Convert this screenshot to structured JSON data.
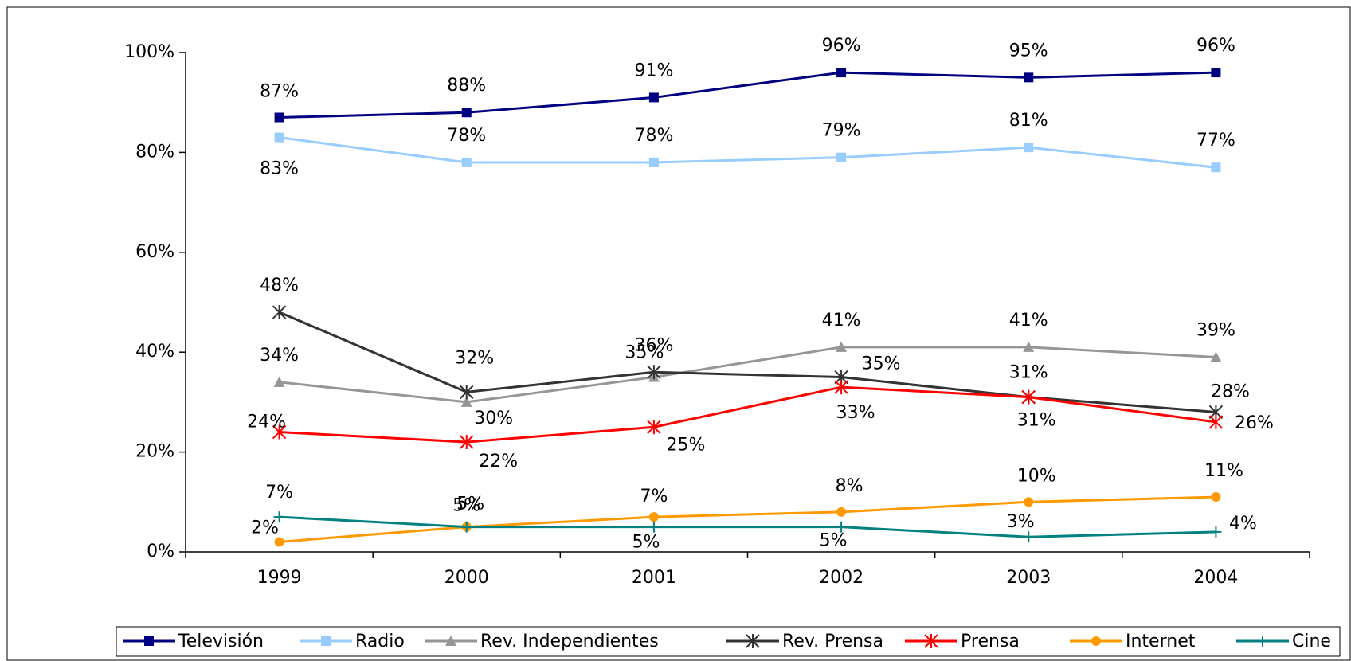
{
  "chart_data": {
    "type": "line",
    "categories": [
      "1999",
      "2000",
      "2001",
      "2002",
      "2003",
      "2004"
    ],
    "ylim": [
      0,
      100
    ],
    "yticks": [
      {
        "value": 0,
        "label": "0%"
      },
      {
        "value": 20,
        "label": "20%"
      },
      {
        "value": 40,
        "label": "40%"
      },
      {
        "value": 60,
        "label": "60%"
      },
      {
        "value": 80,
        "label": "80%"
      },
      {
        "value": 100,
        "label": "100%"
      }
    ],
    "legend": "bottom",
    "series": [
      {
        "name": "Televisión",
        "color": "#000080",
        "marker": "square",
        "values": [
          87,
          88,
          91,
          96,
          95,
          96
        ],
        "value_labels": [
          "87%",
          "88%",
          "91%",
          "96%",
          "95%",
          "96%"
        ]
      },
      {
        "name": "Radio",
        "color": "#99ccff",
        "marker": "square",
        "values": [
          83,
          78,
          78,
          79,
          81,
          77
        ],
        "value_labels": [
          "83%",
          "78%",
          "78%",
          "79%",
          "81%",
          "77%"
        ]
      },
      {
        "name": "Rev. Independientes",
        "color": "#969696",
        "marker": "triangle",
        "values": [
          34,
          30,
          35,
          41,
          41,
          39
        ],
        "value_labels": [
          "34%",
          "30%",
          "35%",
          "41%",
          "41%",
          "39%"
        ]
      },
      {
        "name": "Rev. Prensa",
        "color": "#333333",
        "marker": "asterisk",
        "values": [
          48,
          32,
          36,
          35,
          31,
          28
        ],
        "value_labels": [
          "48%",
          "32%",
          "36%",
          "35%",
          "31%",
          "28%"
        ]
      },
      {
        "name": "Prensa",
        "color": "#ff0000",
        "marker": "asterisk",
        "values": [
          24,
          22,
          25,
          33,
          31,
          26
        ],
        "value_labels": [
          "24%",
          "22%",
          "25%",
          "33%",
          "31%",
          "26%"
        ]
      },
      {
        "name": "Internet",
        "color": "#ff9900",
        "marker": "circle",
        "values": [
          2,
          5,
          7,
          8,
          10,
          11
        ],
        "value_labels": [
          "2%",
          "5%",
          "7%",
          "8%",
          "10%",
          "11%"
        ]
      },
      {
        "name": "Cine",
        "color": "#008080",
        "marker": "plus",
        "values": [
          7,
          5,
          5,
          5,
          3,
          4
        ],
        "value_labels": [
          "7%",
          "5%",
          "5%",
          "5%",
          "3%",
          "4%"
        ]
      }
    ]
  }
}
